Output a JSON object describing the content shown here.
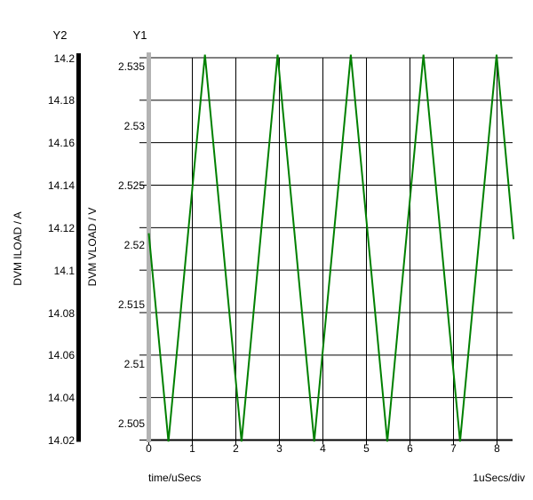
{
  "chart_data": {
    "type": "line",
    "title": "",
    "grid": "on",
    "x_axis": {
      "label": "time/uSecs",
      "div_label": "1uSecs/div",
      "units": "uSecs",
      "ticks": [
        0,
        1,
        2,
        3,
        4,
        5,
        6,
        7,
        8
      ],
      "range": [
        0,
        8.38
      ]
    },
    "y1_axis": {
      "name": "Y1",
      "label": "DVM VLOAD / V",
      "units": "V",
      "ticks": [
        2.535,
        2.53,
        2.525,
        2.52,
        2.515,
        2.51,
        2.505
      ],
      "range": [
        2.5035,
        2.536
      ]
    },
    "y2_axis": {
      "name": "Y2",
      "label": "DVM ILOAD / A",
      "units": "A",
      "ticks": [
        14.2,
        14.18,
        14.16,
        14.14,
        14.12,
        14.1,
        14.08,
        14.06,
        14.04,
        14.02
      ],
      "range": [
        14.02,
        14.2
      ]
    },
    "series": [
      {
        "name": "DVM VLOAD",
        "axis": "Y1",
        "color": "#008000",
        "waveform": "triangle",
        "period_us": 1.675,
        "v_min": 2.5035,
        "v_max": 2.536,
        "points": [
          [
            0,
            2.521
          ],
          [
            0.45,
            2.5035
          ],
          [
            1.29,
            2.536
          ],
          [
            2.13,
            2.5035
          ],
          [
            2.96,
            2.536
          ],
          [
            3.8,
            2.5035
          ],
          [
            4.64,
            2.536
          ],
          [
            5.48,
            2.5035
          ],
          [
            6.31,
            2.536
          ],
          [
            7.15,
            2.5035
          ],
          [
            7.99,
            2.536
          ],
          [
            8.38,
            2.5205
          ]
        ]
      }
    ]
  },
  "colors": {
    "trace_green": "#008000",
    "y1_axis_bar": "#b3b3b3",
    "y2_axis_bar": "#000000",
    "grid": "#000000",
    "background": "#ffffff",
    "text": "#000000"
  }
}
